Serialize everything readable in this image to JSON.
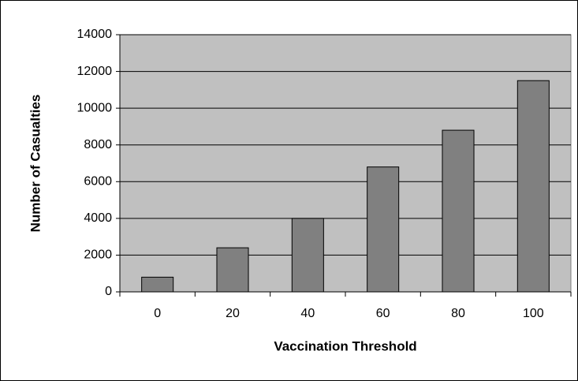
{
  "chart_data": {
    "type": "bar",
    "categories": [
      "0",
      "20",
      "40",
      "60",
      "80",
      "100"
    ],
    "values": [
      800,
      2400,
      4000,
      6800,
      8800,
      11500
    ],
    "color": "#808080",
    "xlabel": "Vaccination Threshold",
    "ylabel": "Number of Casualties",
    "ylim": [
      0,
      14000
    ],
    "yticks": [
      0,
      2000,
      4000,
      6000,
      8000,
      10000,
      12000,
      14000
    ],
    "grid": true,
    "background": "#c0c0c0"
  }
}
